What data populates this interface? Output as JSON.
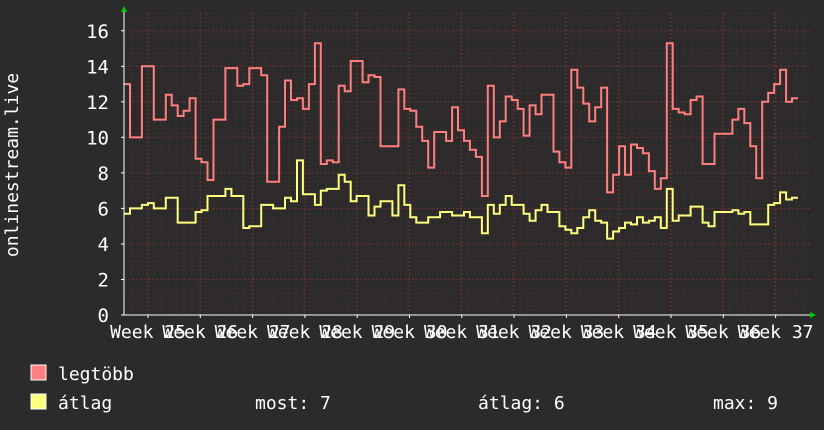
{
  "chart_data": {
    "type": "line",
    "ylabel": "onlinestream.live",
    "ylim": [
      0,
      17
    ],
    "yticks": [
      0,
      2,
      4,
      6,
      8,
      10,
      12,
      14,
      16
    ],
    "x_tick_labels": [
      "Week 25",
      "Week 26",
      "Week 27",
      "Week 28",
      "Week 29",
      "Week 30",
      "Week 31",
      "Week 32",
      "Week 33",
      "Week 34",
      "Week 35",
      "Week 36",
      "Week 37"
    ],
    "grid": true,
    "series": [
      {
        "name": "legtöbb",
        "color": "#ff7f7f",
        "values": [
          13,
          10,
          10,
          14,
          14,
          11,
          11,
          12.4,
          11.8,
          11.2,
          11.5,
          12.2,
          8.8,
          8.6,
          7.6,
          11,
          11,
          13.9,
          13.9,
          12.9,
          13,
          13.9,
          13.9,
          13.5,
          7.5,
          7.5,
          10.6,
          13.2,
          12.1,
          12.2,
          11.6,
          13,
          15.3,
          8.5,
          8.7,
          8.6,
          12.9,
          12.6,
          14.3,
          14.3,
          13.1,
          13.5,
          13.4,
          9.5,
          9.5,
          9.5,
          12.7,
          11.6,
          11.5,
          10.6,
          9.8,
          8.3,
          10.3,
          10.3,
          9.8,
          11.7,
          10.4,
          9.8,
          9.3,
          8.9,
          6.7,
          12.9,
          10,
          10.9,
          12.3,
          12.1,
          11.6,
          10.1,
          11.8,
          11.3,
          12.4,
          12.4,
          9.2,
          8.6,
          8.3,
          13.8,
          12.8,
          11.9,
          10.9,
          11.7,
          12.8,
          6.9,
          7.9,
          9.5,
          7.9,
          9.6,
          9.4,
          9.1,
          8.1,
          7.1,
          7.7,
          15.3,
          11.6,
          11.4,
          11.3,
          12.1,
          12.3,
          8.5,
          8.5,
          10.2,
          10.2,
          10.2,
          11,
          11.6,
          10.8,
          9.5,
          7.7,
          12,
          12.5,
          13,
          13.8,
          12,
          12.2
        ]
      },
      {
        "name": "átlag",
        "color": "#ffff7f",
        "values": [
          5.7,
          6,
          6,
          6.2,
          6.3,
          6,
          6,
          6.6,
          6.6,
          5.2,
          5.2,
          5.2,
          5.8,
          5.9,
          6.7,
          6.7,
          6.7,
          7.1,
          6.7,
          6.7,
          4.9,
          5,
          5,
          6.2,
          6.2,
          6,
          6,
          6.6,
          6.4,
          8.7,
          6.8,
          6.8,
          6.2,
          7,
          7.1,
          7.1,
          7.9,
          7.5,
          6.4,
          6.7,
          6.7,
          5.6,
          6.1,
          6.4,
          6.4,
          5.6,
          7.3,
          6.2,
          5.5,
          5.2,
          5.2,
          5.5,
          5.5,
          5.8,
          5.8,
          5.6,
          5.6,
          5.8,
          5.5,
          5.5,
          4.6,
          6.2,
          5.7,
          6.2,
          6.7,
          6.2,
          6.2,
          5.7,
          5.3,
          5.9,
          6.2,
          5.8,
          5.8,
          5,
          4.8,
          4.6,
          4.9,
          5.5,
          5.9,
          5.3,
          5.2,
          4.3,
          4.7,
          4.9,
          5.2,
          5.1,
          5.5,
          5.2,
          5.3,
          5.5,
          4.9,
          7.1,
          5.3,
          5.6,
          5.6,
          6.1,
          6.1,
          5.2,
          5,
          5.8,
          5.8,
          5.8,
          5.9,
          5.7,
          5.8,
          5.1,
          5.1,
          5.1,
          6.2,
          6.3,
          6.9,
          6.5,
          6.6
        ]
      }
    ]
  },
  "legend": {
    "max_label": "legtöbb",
    "avg_label": "átlag",
    "max_color": "#ff7f7f",
    "avg_color": "#ffff7f"
  },
  "stats": {
    "current": "most: 7",
    "average": "átlag: 6",
    "maximum": "max: 9"
  },
  "colors": {
    "background": "#2b2b2b",
    "grid": "#5a2d2d",
    "axis": "#ffffff",
    "text": "#ffffff",
    "arrow": "#00cc00"
  }
}
